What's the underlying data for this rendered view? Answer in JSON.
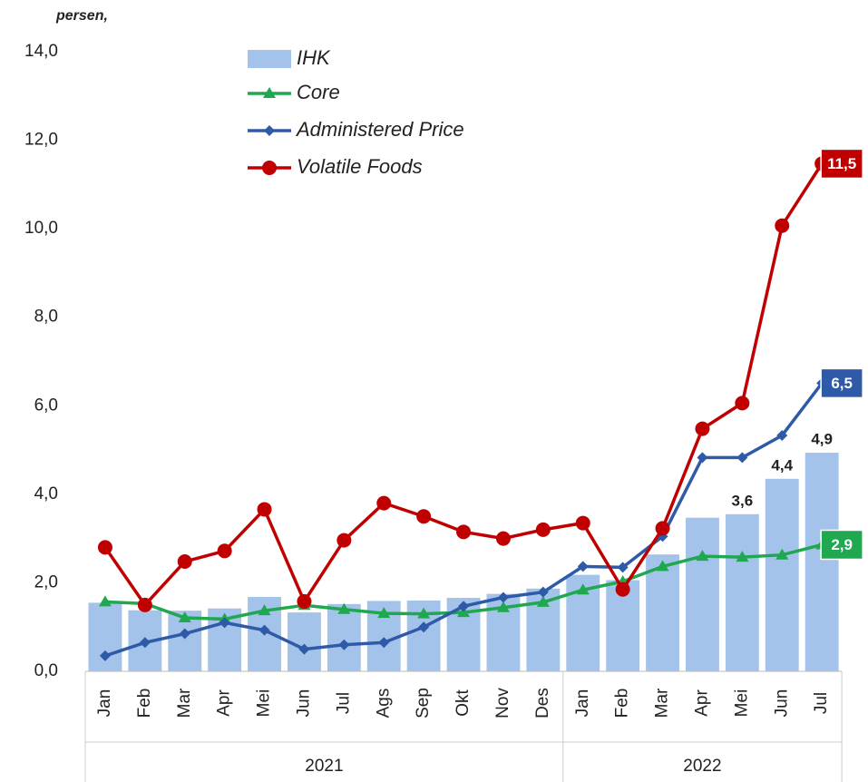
{
  "chart_data": {
    "type": "combo",
    "y_label": "persen,",
    "category_groups": [
      {
        "name": "2021",
        "categories": [
          "Jan",
          "Feb",
          "Mar",
          "Apr",
          "Mei",
          "Jun",
          "Jul",
          "Ags",
          "Sep",
          "Okt",
          "Nov",
          "Des"
        ]
      },
      {
        "name": "2022",
        "categories": [
          "Jan",
          "Feb",
          "Mar",
          "Apr",
          "Mei",
          "Jun",
          "Jul"
        ]
      }
    ],
    "series": [
      {
        "name": "IHK",
        "type": "bar",
        "color": "#a3c3ea",
        "values": [
          1.55,
          1.38,
          1.37,
          1.42,
          1.68,
          1.33,
          1.52,
          1.59,
          1.6,
          1.66,
          1.75,
          1.87,
          2.18,
          2.06,
          2.64,
          3.47,
          3.55,
          4.35,
          4.94
        ],
        "value_labels": [
          null,
          null,
          null,
          null,
          null,
          null,
          null,
          null,
          null,
          null,
          null,
          null,
          null,
          null,
          null,
          null,
          "3,6",
          "4,4",
          "4,9"
        ]
      },
      {
        "name": "Core",
        "type": "line",
        "marker": "triangle",
        "color": "#1fa84f",
        "values": [
          1.57,
          1.53,
          1.21,
          1.18,
          1.37,
          1.49,
          1.4,
          1.31,
          1.3,
          1.33,
          1.44,
          1.56,
          1.84,
          2.03,
          2.37,
          2.6,
          2.58,
          2.63,
          2.86
        ],
        "value_labels": [
          null,
          null,
          null,
          null,
          null,
          null,
          null,
          null,
          null,
          null,
          null,
          null,
          null,
          null,
          null,
          null,
          null,
          null,
          "2,9"
        ]
      },
      {
        "name": "Administered Price",
        "type": "line",
        "marker": "diamond",
        "color": "#2e5aa7",
        "values": [
          0.35,
          0.65,
          0.85,
          1.1,
          0.93,
          0.5,
          0.6,
          0.65,
          1.0,
          1.47,
          1.67,
          1.79,
          2.37,
          2.35,
          3.05,
          4.83,
          4.83,
          5.33,
          6.51
        ],
        "value_labels": [
          null,
          null,
          null,
          null,
          null,
          null,
          null,
          null,
          null,
          null,
          null,
          null,
          null,
          null,
          null,
          null,
          null,
          null,
          "6,5"
        ]
      },
      {
        "name": "Volatile Foods",
        "type": "line",
        "marker": "circle",
        "color": "#c00000",
        "values": [
          2.8,
          1.5,
          2.48,
          2.72,
          3.66,
          1.58,
          2.96,
          3.8,
          3.5,
          3.15,
          3.0,
          3.2,
          3.35,
          1.85,
          3.23,
          5.48,
          6.06,
          10.07,
          11.47
        ],
        "value_labels": [
          null,
          null,
          null,
          null,
          null,
          null,
          null,
          null,
          null,
          null,
          null,
          null,
          null,
          null,
          null,
          null,
          null,
          null,
          "11,5"
        ]
      }
    ],
    "ylim": [
      0,
      14
    ],
    "yticks": [
      {
        "value": 0,
        "label": "0,0"
      },
      {
        "value": 2,
        "label": "2,0"
      },
      {
        "value": 4,
        "label": "4,0"
      },
      {
        "value": 6,
        "label": "6,0"
      },
      {
        "value": 8,
        "label": "8,0"
      },
      {
        "value": 10,
        "label": "10,0"
      },
      {
        "value": 12,
        "label": "12,0"
      },
      {
        "value": 14,
        "label": "14,0"
      }
    ],
    "grid": false
  }
}
